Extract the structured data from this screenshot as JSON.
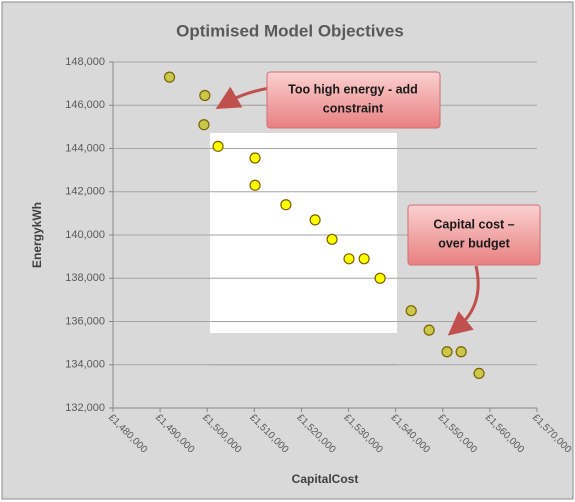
{
  "chart_data": {
    "type": "scatter",
    "title": "Optimised Model Objectives",
    "x_label": "CapitalCost",
    "y_label": "EnergykWh",
    "x": [
      1492000,
      1499500,
      1499300,
      1502300,
      1510150,
      1510150,
      1516700,
      1522900,
      1526500,
      1530100,
      1533300,
      1536700,
      1543300,
      1547100,
      1550900,
      1553900,
      1557700
    ],
    "values": [
      147300,
      146450,
      145100,
      144100,
      143560,
      142300,
      141400,
      140700,
      139800,
      138900,
      138900,
      138000,
      136500,
      135600,
      134600,
      134600,
      133600
    ],
    "colors": [
      "#c8c84a",
      "#c8c84a",
      "#c8c84a",
      "#ffff00",
      "#ffff00",
      "#ffff00",
      "#ffff00",
      "#ffff00",
      "#ffff00",
      "#ffff00",
      "#ffff00",
      "#ffff00",
      "#c8c84a",
      "#c8c84a",
      "#c8c84a",
      "#c8c84a",
      "#c8c84a"
    ],
    "xlim": [
      1480000,
      1570000
    ],
    "xticks": [
      {
        "value": 1480000,
        "label": "£1,480,000"
      },
      {
        "value": 1490000,
        "label": "£1,490,000"
      },
      {
        "value": 1500000,
        "label": "£1,500,000"
      },
      {
        "value": 1510000,
        "label": "£1,510,000"
      },
      {
        "value": 1520000,
        "label": "£1,520,000"
      },
      {
        "value": 1530000,
        "label": "£1,530,000"
      },
      {
        "value": 1540000,
        "label": "£1,540,000"
      },
      {
        "value": 1550000,
        "label": "£1,550,000"
      },
      {
        "value": 1560000,
        "label": "£1,560,000"
      },
      {
        "value": 1570000,
        "label": "£1,570,000"
      }
    ],
    "ylim": [
      132000,
      148000
    ],
    "yticks": [
      {
        "value": 132000,
        "label": "132,000"
      },
      {
        "value": 134000,
        "label": "134,000"
      },
      {
        "value": 136000,
        "label": "136,000"
      },
      {
        "value": 138000,
        "label": "138,000"
      },
      {
        "value": 140000,
        "label": "140,000"
      },
      {
        "value": 142000,
        "label": "142,000"
      },
      {
        "value": 144000,
        "label": "144,000"
      },
      {
        "value": 146000,
        "label": "146,000"
      },
      {
        "value": 148000,
        "label": "148,000"
      }
    ],
    "grid": true,
    "annotations": [
      [
        "Too high energy - add",
        "constraint"
      ],
      [
        "Capital cost –",
        "over budget"
      ]
    ]
  }
}
